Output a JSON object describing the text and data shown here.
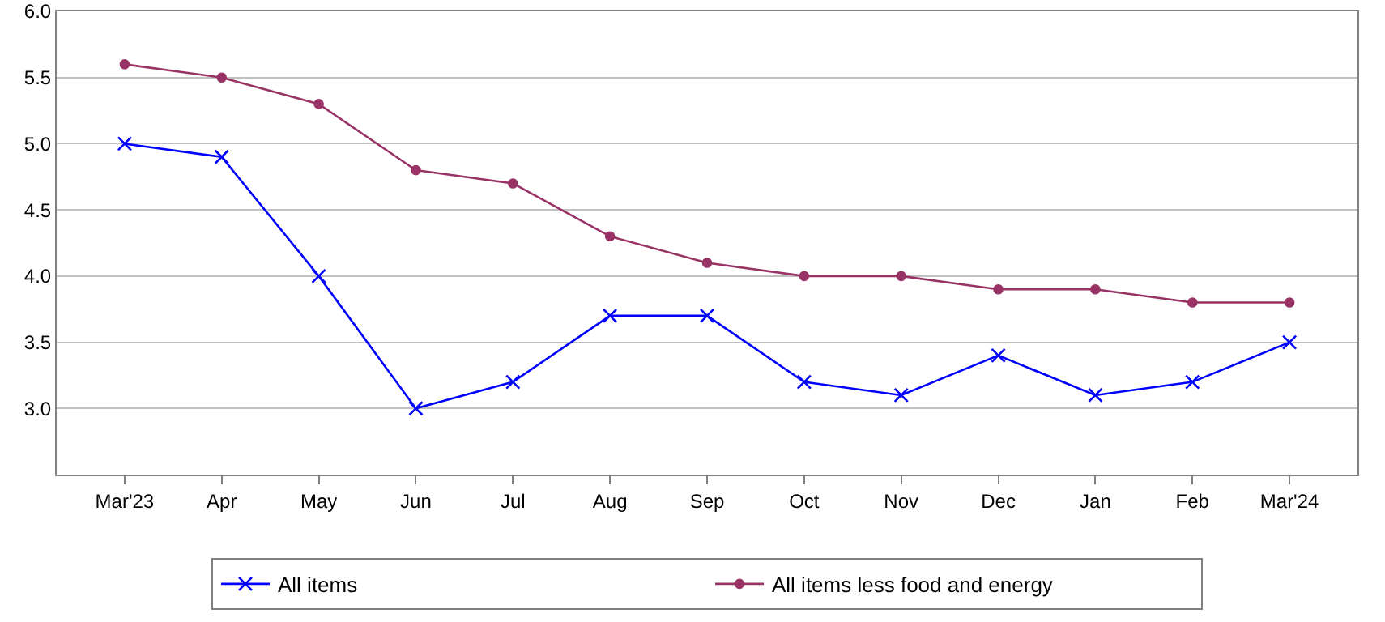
{
  "chart_data": {
    "type": "line",
    "categories": [
      "Mar'23",
      "Apr",
      "May",
      "Jun",
      "Jul",
      "Aug",
      "Sep",
      "Oct",
      "Nov",
      "Dec",
      "Jan",
      "Feb",
      "Mar'24"
    ],
    "series": [
      {
        "name": "All items",
        "color": "#0000ff",
        "marker": "cross",
        "values": [
          5.0,
          4.9,
          4.0,
          3.0,
          3.2,
          3.7,
          3.7,
          3.2,
          3.1,
          3.4,
          3.1,
          3.2,
          3.5
        ]
      },
      {
        "name": "All items less food and energy",
        "color": "#993366",
        "marker": "circle",
        "values": [
          5.6,
          5.5,
          5.3,
          4.8,
          4.7,
          4.3,
          4.1,
          4.0,
          4.0,
          3.9,
          3.9,
          3.8,
          3.8
        ]
      }
    ],
    "ylim": [
      2.5,
      6.0
    ],
    "yticks": [
      {
        "value": 3.0,
        "label": "3.0"
      },
      {
        "value": 3.5,
        "label": "3.5"
      },
      {
        "value": 4.0,
        "label": "4.0"
      },
      {
        "value": 4.5,
        "label": "4.5"
      },
      {
        "value": 5.0,
        "label": "5.0"
      },
      {
        "value": 5.5,
        "label": "5.5"
      },
      {
        "value": 6.0,
        "label": "6.0"
      }
    ],
    "grid": "y",
    "legend": "bottom",
    "line_style": "solid"
  }
}
